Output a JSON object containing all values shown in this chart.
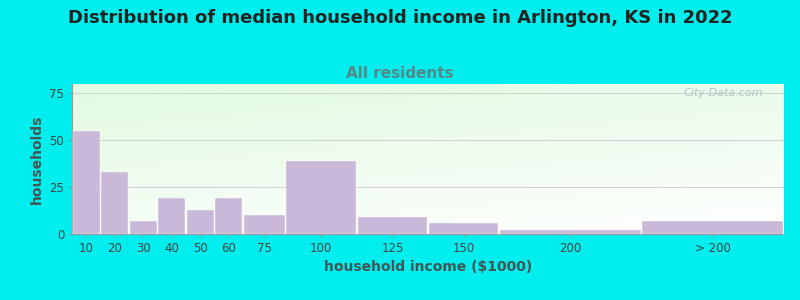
{
  "title": "Distribution of median household income in Arlington, KS in 2022",
  "subtitle": "All residents",
  "xlabel": "household income ($1000)",
  "ylabel": "households",
  "bar_labels": [
    "10",
    "20",
    "30",
    "40",
    "50",
    "60",
    "75",
    "100",
    "125",
    "150",
    "200",
    "> 200"
  ],
  "bar_values": [
    55,
    33,
    7,
    19,
    13,
    19,
    10,
    39,
    9,
    6,
    2,
    7
  ],
  "bar_color": "#c9b8d8",
  "yticks": [
    0,
    25,
    50,
    75
  ],
  "ylim": [
    0,
    80
  ],
  "background_color": "#00eeee",
  "title_fontsize": 13,
  "subtitle_fontsize": 11,
  "subtitle_color": "#558888",
  "axis_label_fontsize": 10,
  "tick_fontsize": 8.5,
  "watermark": "City-Data.com",
  "widths": [
    10,
    10,
    10,
    10,
    10,
    10,
    15,
    25,
    25,
    25,
    50,
    50
  ],
  "lefts": [
    0,
    10,
    20,
    30,
    40,
    50,
    60,
    75,
    100,
    125,
    150,
    200
  ]
}
